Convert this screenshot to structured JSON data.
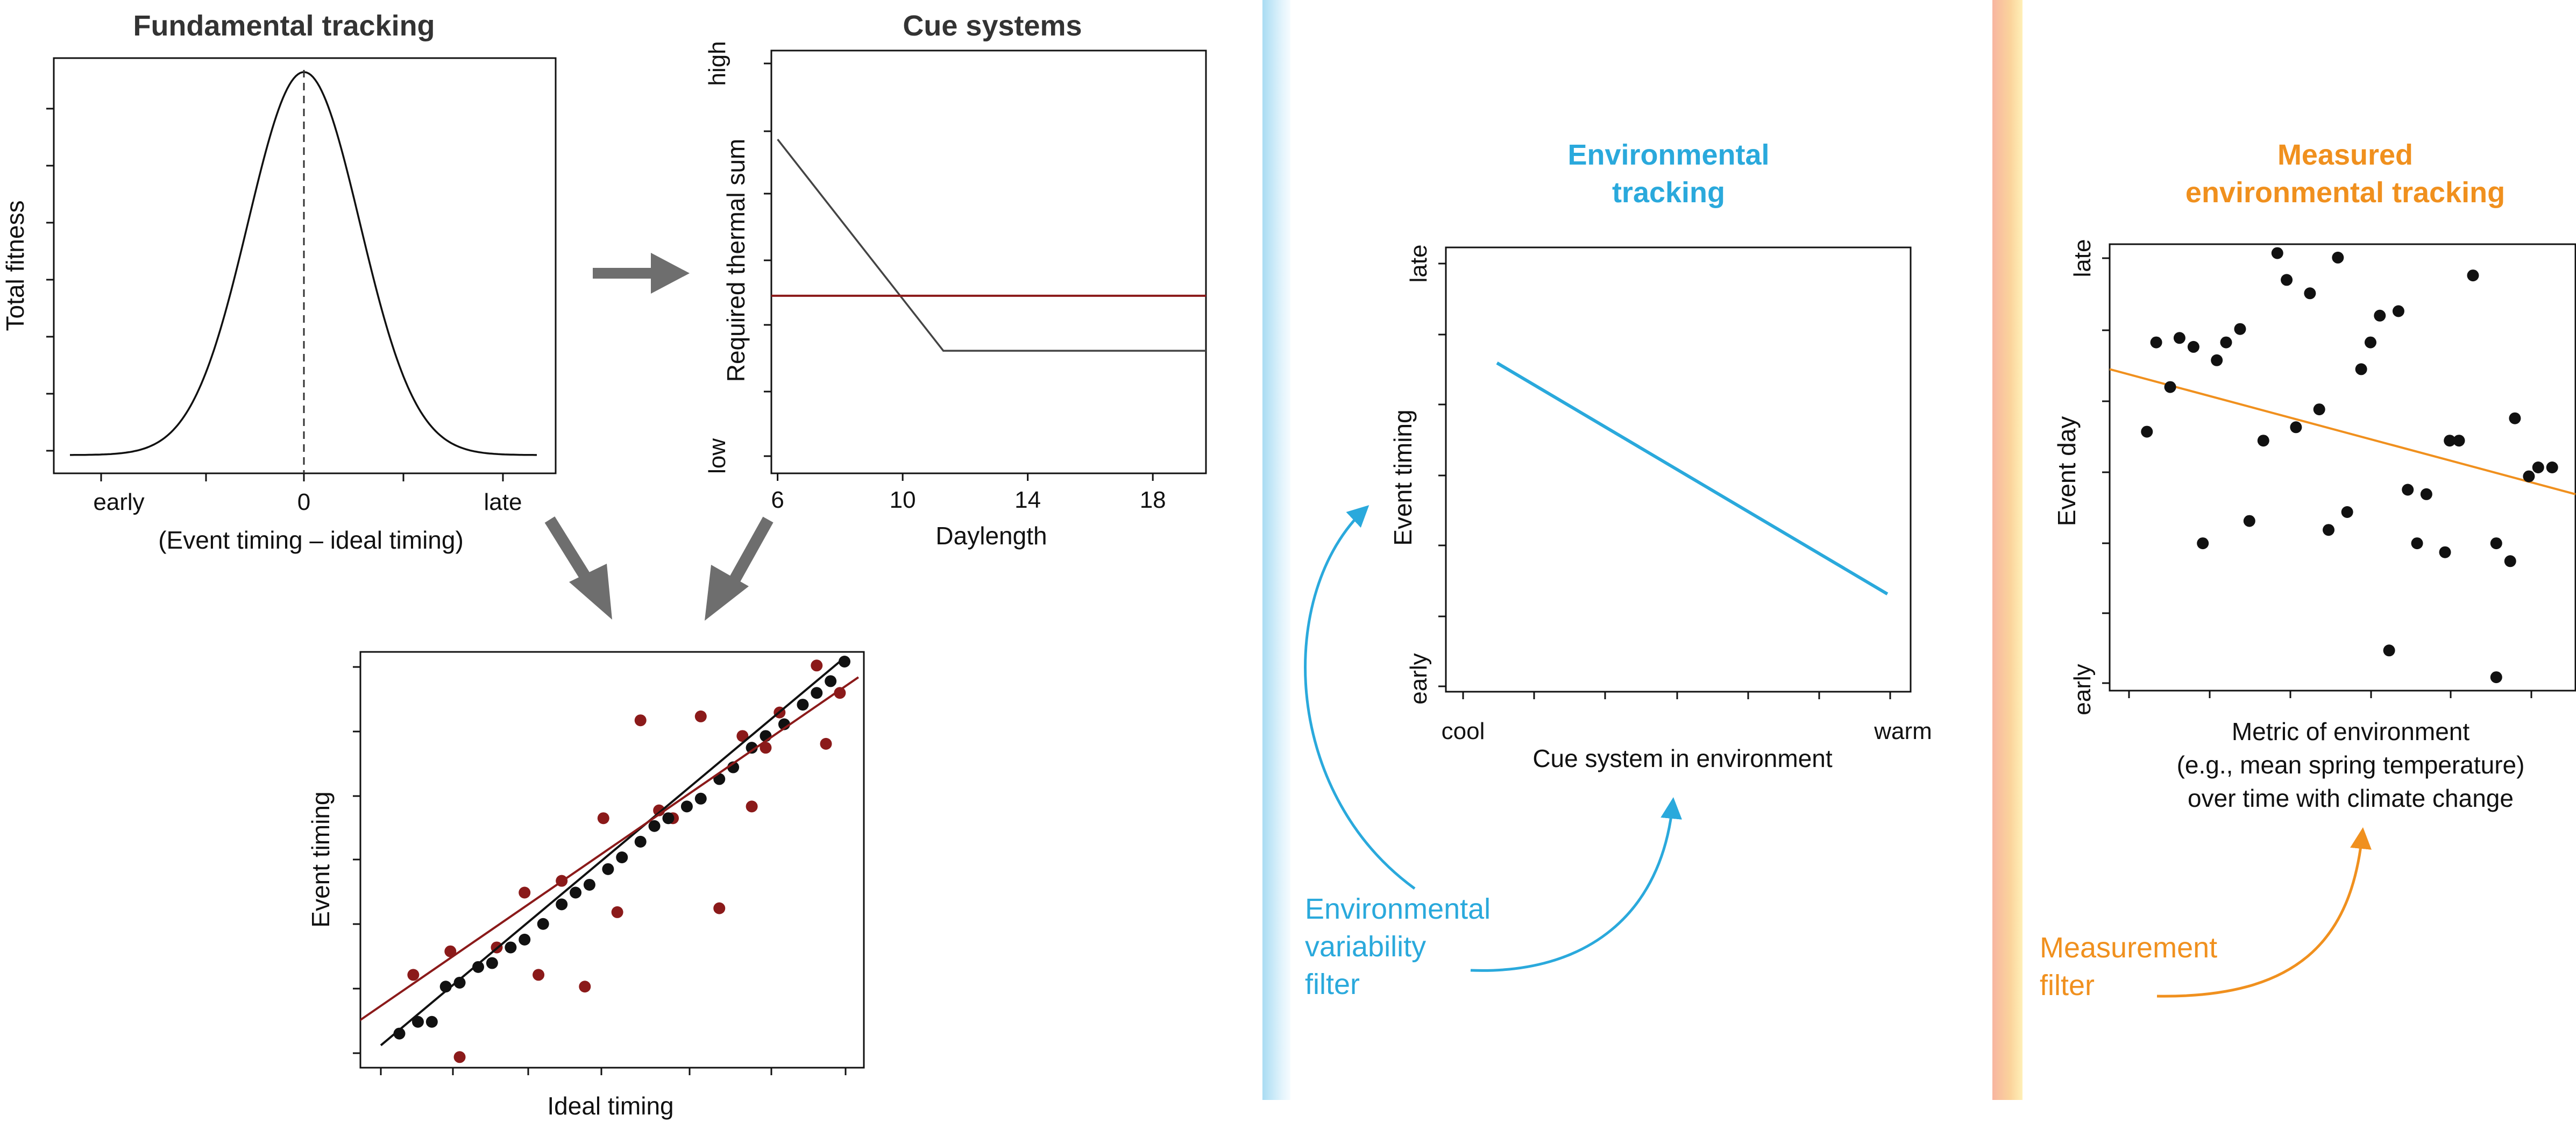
{
  "colors": {
    "blue": "#2aa9dc",
    "orange": "#f0901e",
    "dark_red": "#8b1a1a",
    "arrow_gray": "#6e6e6e",
    "cue_gray": "#444444",
    "axis": "#111111"
  },
  "fundamental": {
    "title": "Fundamental tracking",
    "ylabel": "Total fitness",
    "xlabel": "(Event timing – ideal timing)",
    "x_ticks": [
      "early",
      "0",
      "late"
    ]
  },
  "cue": {
    "title": "Cue systems",
    "ylabel": "Required thermal sum",
    "xlabel": "Daylength",
    "y_ticks": [
      "high",
      "low"
    ],
    "x_ticks": [
      "6",
      "10",
      "14",
      "18"
    ],
    "xlim": [
      5.8,
      19.7
    ],
    "ylim": [
      0,
      1
    ],
    "gray_line": [
      [
        6,
        0.79
      ],
      [
        11.3,
        0.29
      ],
      [
        19.7,
        0.29
      ]
    ],
    "red_line": [
      [
        5.8,
        0.42
      ],
      [
        19.7,
        0.42
      ]
    ]
  },
  "scatter": {
    "xlabel": "Ideal timing",
    "ylabel": "Event timing",
    "xlim": [
      0,
      1
    ],
    "ylim": [
      0,
      1
    ],
    "black_points": [
      [
        0.04,
        0.05
      ],
      [
        0.08,
        0.08
      ],
      [
        0.11,
        0.08
      ],
      [
        0.14,
        0.17
      ],
      [
        0.17,
        0.18
      ],
      [
        0.21,
        0.22
      ],
      [
        0.24,
        0.23
      ],
      [
        0.28,
        0.27
      ],
      [
        0.31,
        0.29
      ],
      [
        0.35,
        0.33
      ],
      [
        0.39,
        0.38
      ],
      [
        0.42,
        0.41
      ],
      [
        0.45,
        0.43
      ],
      [
        0.49,
        0.47
      ],
      [
        0.52,
        0.5
      ],
      [
        0.56,
        0.54
      ],
      [
        0.59,
        0.58
      ],
      [
        0.62,
        0.6
      ],
      [
        0.66,
        0.63
      ],
      [
        0.69,
        0.65
      ],
      [
        0.73,
        0.7
      ],
      [
        0.76,
        0.73
      ],
      [
        0.8,
        0.78
      ],
      [
        0.83,
        0.81
      ],
      [
        0.87,
        0.84
      ],
      [
        0.91,
        0.89
      ],
      [
        0.94,
        0.92
      ],
      [
        0.97,
        0.95
      ],
      [
        1.0,
        1.0
      ]
    ],
    "red_points": [
      [
        0.07,
        0.2
      ],
      [
        0.15,
        0.26
      ],
      [
        0.17,
        -0.01
      ],
      [
        0.25,
        0.27
      ],
      [
        0.31,
        0.41
      ],
      [
        0.34,
        0.2
      ],
      [
        0.39,
        0.44
      ],
      [
        0.44,
        0.17
      ],
      [
        0.48,
        0.6
      ],
      [
        0.51,
        0.36
      ],
      [
        0.56,
        0.85
      ],
      [
        0.6,
        0.62
      ],
      [
        0.63,
        0.6
      ],
      [
        0.69,
        0.86
      ],
      [
        0.73,
        0.37
      ],
      [
        0.78,
        0.81
      ],
      [
        0.8,
        0.63
      ],
      [
        0.83,
        0.78
      ],
      [
        0.86,
        0.87
      ],
      [
        0.94,
        0.99
      ],
      [
        0.96,
        0.79
      ],
      [
        0.99,
        0.92
      ]
    ],
    "black_line": [
      [
        0,
        0.02
      ],
      [
        1,
        1.01
      ]
    ],
    "red_line": [
      [
        -0.05,
        0.08
      ],
      [
        1.03,
        0.96
      ]
    ]
  },
  "env": {
    "title": "Environmental\ntracking",
    "ylabel": "Event timing",
    "xlabel": "Cue system in environment",
    "y_ticks": [
      "late",
      "early"
    ],
    "x_ticks": [
      "cool",
      "warm"
    ],
    "xlim": [
      0,
      1
    ],
    "ylim": [
      0,
      1
    ],
    "line": [
      [
        0.11,
        0.74
      ],
      [
        0.95,
        0.22
      ]
    ],
    "filter_label": "Environmental\nvariability\nfilter"
  },
  "measured": {
    "title": "Measured\nenvironmental tracking",
    "ylabel": "Event day",
    "xlabel": "Metric of environment\n(e.g., mean spring temperature)\nover time with climate change",
    "y_ticks": [
      "late",
      "early"
    ],
    "xlim": [
      0,
      1
    ],
    "ylim": [
      0,
      1
    ],
    "points": [
      [
        0.08,
        0.58
      ],
      [
        0.1,
        0.78
      ],
      [
        0.13,
        0.68
      ],
      [
        0.15,
        0.79
      ],
      [
        0.18,
        0.77
      ],
      [
        0.2,
        0.33
      ],
      [
        0.23,
        0.74
      ],
      [
        0.25,
        0.78
      ],
      [
        0.28,
        0.81
      ],
      [
        0.3,
        0.38
      ],
      [
        0.33,
        0.56
      ],
      [
        0.36,
        0.98
      ],
      [
        0.38,
        0.92
      ],
      [
        0.4,
        0.59
      ],
      [
        0.43,
        0.89
      ],
      [
        0.45,
        0.63
      ],
      [
        0.47,
        0.36
      ],
      [
        0.49,
        0.97
      ],
      [
        0.51,
        0.4
      ],
      [
        0.54,
        0.72
      ],
      [
        0.56,
        0.78
      ],
      [
        0.58,
        0.84
      ],
      [
        0.6,
        0.09
      ],
      [
        0.62,
        0.85
      ],
      [
        0.64,
        0.45
      ],
      [
        0.66,
        0.33
      ],
      [
        0.68,
        0.44
      ],
      [
        0.72,
        0.31
      ],
      [
        0.73,
        0.56
      ],
      [
        0.75,
        0.56
      ],
      [
        0.78,
        0.93
      ],
      [
        0.83,
        0.33
      ],
      [
        0.83,
        0.03
      ],
      [
        0.86,
        0.29
      ],
      [
        0.87,
        0.61
      ],
      [
        0.9,
        0.48
      ],
      [
        0.92,
        0.5
      ],
      [
        0.95,
        0.5
      ]
    ],
    "line": [
      [
        0,
        0.72
      ],
      [
        1,
        0.44
      ]
    ],
    "filter_label": "Measurement\nfilter"
  }
}
